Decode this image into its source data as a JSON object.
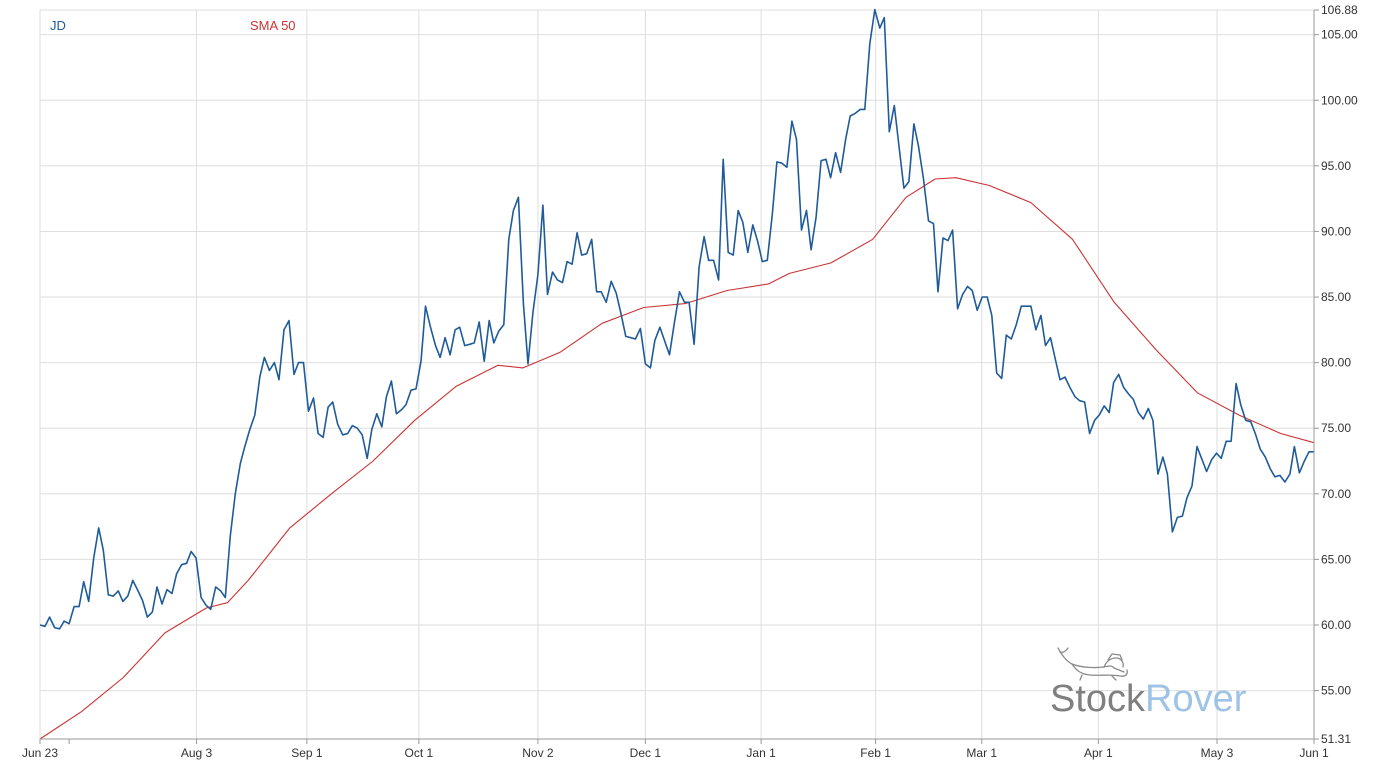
{
  "chart_data": {
    "type": "line",
    "title": "",
    "xlabel": "",
    "ylabel": "",
    "x_ticks": [
      "Jun 23",
      "Aug 3",
      "Sep 1",
      "Oct 1",
      "Nov 2",
      "Dec 1",
      "Jan 1",
      "Feb 1",
      "Mar 1",
      "Apr 1",
      "May 3",
      "Jun 1"
    ],
    "y_ticks": [
      "51.31",
      "55.00",
      "60.00",
      "65.00",
      "70.00",
      "75.00",
      "80.00",
      "85.00",
      "90.00",
      "95.00",
      "100.00",
      "105.00",
      "106.88"
    ],
    "ylim": [
      51.31,
      106.88
    ],
    "grid": true,
    "legend_position": "top-left",
    "series": [
      {
        "name": "JD",
        "color": "#1f5b99",
        "points": [
          [
            0,
            60.0
          ],
          [
            1.2,
            59.9
          ],
          [
            2.3,
            60.6
          ],
          [
            3.5,
            59.8
          ],
          [
            4.7,
            59.7
          ],
          [
            5.8,
            60.3
          ],
          [
            7,
            60.1
          ],
          [
            8.2,
            61.4
          ],
          [
            9.4,
            61.4
          ],
          [
            10.5,
            63.3
          ],
          [
            11.7,
            61.8
          ],
          [
            12.9,
            65.1
          ],
          [
            14.1,
            67.4
          ],
          [
            15.2,
            65.7
          ],
          [
            16.4,
            62.3
          ],
          [
            17.6,
            62.2
          ],
          [
            18.8,
            62.6
          ],
          [
            19.9,
            61.8
          ],
          [
            21.1,
            62.2
          ],
          [
            22.3,
            63.4
          ],
          [
            23.4,
            62.7
          ],
          [
            24.6,
            61.9
          ],
          [
            25.8,
            60.6
          ],
          [
            27,
            61.0
          ],
          [
            28.1,
            62.9
          ],
          [
            29.3,
            61.6
          ],
          [
            30.5,
            62.7
          ],
          [
            31.7,
            62.4
          ],
          [
            32.8,
            63.9
          ],
          [
            34,
            64.6
          ],
          [
            35.2,
            64.7
          ],
          [
            36.3,
            65.6
          ],
          [
            37.5,
            65.1
          ],
          [
            38.7,
            62.1
          ],
          [
            39.9,
            61.5
          ],
          [
            41,
            61.2
          ],
          [
            42.2,
            62.9
          ],
          [
            43.4,
            62.6
          ],
          [
            44.5,
            62.1
          ],
          [
            45.7,
            66.8
          ],
          [
            46.9,
            70.0
          ],
          [
            48.1,
            72.3
          ],
          [
            49.2,
            73.6
          ],
          [
            50.4,
            74.9
          ],
          [
            51.6,
            76.0
          ],
          [
            52.8,
            78.9
          ],
          [
            53.9,
            80.4
          ],
          [
            55.1,
            79.4
          ],
          [
            56.3,
            80.0
          ],
          [
            57.4,
            78.7
          ],
          [
            58.6,
            82.5
          ],
          [
            59.8,
            83.2
          ],
          [
            61,
            79.1
          ],
          [
            62.1,
            80.0
          ],
          [
            63.3,
            80.0
          ],
          [
            64.5,
            76.3
          ],
          [
            65.7,
            77.3
          ],
          [
            66.8,
            74.6
          ],
          [
            68,
            74.3
          ],
          [
            69.2,
            76.6
          ],
          [
            70.3,
            77.0
          ],
          [
            71.5,
            75.3
          ],
          [
            72.7,
            74.5
          ],
          [
            73.9,
            74.6
          ],
          [
            75,
            75.2
          ],
          [
            76.2,
            75.0
          ],
          [
            77.4,
            74.5
          ],
          [
            78.6,
            72.7
          ],
          [
            79.7,
            74.9
          ],
          [
            80.9,
            76.1
          ],
          [
            82.1,
            75.1
          ],
          [
            83.2,
            77.4
          ],
          [
            84.4,
            78.6
          ],
          [
            85.6,
            76.1
          ],
          [
            86.8,
            76.4
          ],
          [
            87.9,
            76.8
          ],
          [
            89.1,
            77.9
          ],
          [
            90.3,
            78.0
          ],
          [
            91.5,
            80.1
          ],
          [
            92.6,
            84.3
          ],
          [
            93.8,
            82.7
          ],
          [
            95,
            81.3
          ],
          [
            96.1,
            80.4
          ],
          [
            97.3,
            81.9
          ],
          [
            98.5,
            80.6
          ],
          [
            99.7,
            82.5
          ],
          [
            100.8,
            82.7
          ],
          [
            102,
            81.3
          ],
          [
            103.2,
            81.4
          ],
          [
            104.3,
            81.5
          ],
          [
            105.5,
            83.1
          ],
          [
            106.7,
            80.1
          ],
          [
            107.9,
            83.2
          ],
          [
            109,
            81.5
          ],
          [
            110.2,
            82.4
          ],
          [
            111.4,
            82.9
          ],
          [
            112.6,
            89.4
          ],
          [
            113.7,
            91.6
          ],
          [
            114.9,
            92.6
          ],
          [
            116.1,
            84.5
          ],
          [
            117.2,
            79.9
          ],
          [
            118.4,
            83.8
          ],
          [
            119.6,
            86.7
          ],
          [
            120.8,
            92.0
          ],
          [
            121.9,
            85.2
          ],
          [
            123.1,
            86.9
          ],
          [
            124.3,
            86.3
          ],
          [
            125.5,
            86.1
          ],
          [
            126.6,
            87.7
          ],
          [
            127.8,
            87.5
          ],
          [
            129,
            89.9
          ],
          [
            130.1,
            88.2
          ],
          [
            131.3,
            88.3
          ],
          [
            132.5,
            89.4
          ],
          [
            133.7,
            85.4
          ],
          [
            134.8,
            85.4
          ],
          [
            136,
            84.6
          ],
          [
            137.2,
            86.2
          ],
          [
            138.4,
            85.3
          ],
          [
            139.5,
            83.8
          ],
          [
            140.7,
            82.0
          ],
          [
            141.9,
            81.9
          ],
          [
            143,
            81.8
          ],
          [
            144.2,
            82.6
          ],
          [
            145.4,
            79.9
          ],
          [
            146.6,
            79.6
          ],
          [
            147.7,
            81.7
          ],
          [
            148.9,
            82.7
          ],
          [
            150.1,
            81.6
          ],
          [
            151.2,
            80.6
          ],
          [
            152.4,
            83.1
          ],
          [
            153.6,
            85.4
          ],
          [
            154.8,
            84.6
          ],
          [
            155.9,
            84.6
          ],
          [
            157.1,
            81.4
          ],
          [
            158.3,
            87.3
          ],
          [
            159.5,
            89.6
          ],
          [
            160.6,
            87.8
          ],
          [
            161.8,
            87.8
          ],
          [
            163,
            86.3
          ],
          [
            164.1,
            95.5
          ],
          [
            165.3,
            88.4
          ],
          [
            166.5,
            88.2
          ],
          [
            167.7,
            91.6
          ],
          [
            168.8,
            90.7
          ],
          [
            170,
            88.4
          ],
          [
            171.2,
            90.5
          ],
          [
            172.4,
            89.2
          ],
          [
            173.5,
            87.7
          ],
          [
            174.7,
            87.8
          ],
          [
            175.9,
            91.3
          ],
          [
            177,
            95.3
          ],
          [
            178.2,
            95.2
          ],
          [
            179.4,
            94.9
          ],
          [
            180.6,
            98.4
          ],
          [
            181.7,
            97.0
          ],
          [
            182.9,
            90.1
          ],
          [
            184.1,
            91.6
          ],
          [
            185.2,
            88.6
          ],
          [
            186.4,
            91.1
          ],
          [
            187.6,
            95.4
          ],
          [
            188.8,
            95.5
          ],
          [
            189.9,
            94.1
          ],
          [
            191.1,
            96.0
          ],
          [
            192.3,
            94.5
          ],
          [
            193.5,
            97.0
          ],
          [
            194.6,
            98.8
          ],
          [
            195.8,
            99.0
          ],
          [
            197,
            99.3
          ],
          [
            198.1,
            99.3
          ],
          [
            199.3,
            104.3
          ],
          [
            200.5,
            106.9
          ],
          [
            201.7,
            105.5
          ],
          [
            202.8,
            106.3
          ],
          [
            204,
            97.6
          ],
          [
            205.2,
            99.6
          ],
          [
            206.4,
            96.3
          ],
          [
            207.5,
            93.3
          ],
          [
            208.7,
            93.8
          ],
          [
            209.9,
            98.2
          ],
          [
            211,
            96.5
          ],
          [
            212.2,
            94.0
          ],
          [
            213.4,
            90.8
          ],
          [
            214.6,
            90.6
          ],
          [
            215.7,
            85.4
          ],
          [
            216.9,
            89.5
          ],
          [
            218.1,
            89.3
          ],
          [
            219.2,
            90.1
          ],
          [
            220.4,
            84.1
          ],
          [
            221.6,
            85.2
          ],
          [
            222.8,
            85.8
          ],
          [
            223.9,
            85.5
          ],
          [
            225.1,
            84.0
          ],
          [
            226.3,
            85.0
          ],
          [
            227.5,
            85.0
          ],
          [
            228.6,
            83.6
          ],
          [
            229.8,
            79.2
          ],
          [
            231,
            78.8
          ],
          [
            232.1,
            82.1
          ],
          [
            233.3,
            81.8
          ],
          [
            234.5,
            82.9
          ],
          [
            235.7,
            84.3
          ],
          [
            236.8,
            84.3
          ],
          [
            238,
            84.3
          ],
          [
            239.2,
            82.5
          ],
          [
            240.4,
            83.6
          ],
          [
            241.5,
            81.3
          ],
          [
            242.7,
            81.9
          ],
          [
            243.9,
            80.2
          ],
          [
            245,
            78.7
          ],
          [
            246.2,
            78.9
          ],
          [
            247.4,
            78.1
          ],
          [
            248.6,
            77.4
          ],
          [
            249.7,
            77.1
          ],
          [
            250.9,
            77.0
          ],
          [
            252.1,
            74.6
          ],
          [
            253.3,
            75.6
          ],
          [
            254.4,
            76.0
          ],
          [
            255.6,
            76.7
          ],
          [
            256.8,
            76.2
          ],
          [
            257.9,
            78.5
          ],
          [
            259.1,
            79.1
          ],
          [
            260.3,
            78.1
          ],
          [
            261.5,
            77.6
          ],
          [
            262.6,
            77.2
          ],
          [
            263.8,
            76.2
          ],
          [
            265,
            75.7
          ],
          [
            266.2,
            76.5
          ],
          [
            267.3,
            75.6
          ],
          [
            268.5,
            71.5
          ],
          [
            269.7,
            72.8
          ],
          [
            270.8,
            71.5
          ],
          [
            272,
            67.1
          ],
          [
            273.2,
            68.2
          ],
          [
            274.4,
            68.3
          ],
          [
            275.5,
            69.7
          ],
          [
            276.7,
            70.6
          ],
          [
            277.9,
            73.6
          ],
          [
            279,
            72.7
          ],
          [
            280.2,
            71.7
          ],
          [
            281.4,
            72.6
          ],
          [
            282.6,
            73.1
          ],
          [
            283.7,
            72.7
          ],
          [
            284.9,
            74.0
          ],
          [
            286.1,
            74.0
          ],
          [
            287.3,
            78.4
          ],
          [
            288.4,
            76.8
          ],
          [
            289.6,
            75.6
          ],
          [
            290.8,
            75.5
          ],
          [
            291.9,
            74.6
          ],
          [
            293.1,
            73.4
          ],
          [
            294.3,
            72.8
          ],
          [
            295.5,
            71.9
          ],
          [
            296.6,
            71.3
          ],
          [
            297.8,
            71.4
          ],
          [
            299,
            70.9
          ],
          [
            300.2,
            71.5
          ],
          [
            301.3,
            73.6
          ],
          [
            302.5,
            71.6
          ],
          [
            303.7,
            72.5
          ],
          [
            304.8,
            73.2
          ],
          [
            306,
            73.2
          ]
        ]
      },
      {
        "name": "SMA 50",
        "color": "#cc3333",
        "points": [
          [
            0,
            51.31
          ],
          [
            10,
            53.4
          ],
          [
            20,
            56.0
          ],
          [
            30,
            59.4
          ],
          [
            40,
            61.3
          ],
          [
            45,
            61.7
          ],
          [
            50,
            63.4
          ],
          [
            60,
            67.4
          ],
          [
            70,
            70.0
          ],
          [
            80,
            72.5
          ],
          [
            90,
            75.6
          ],
          [
            100,
            78.2
          ],
          [
            110,
            79.8
          ],
          [
            116,
            79.6
          ],
          [
            125,
            80.8
          ],
          [
            135,
            83.0
          ],
          [
            145,
            84.2
          ],
          [
            155,
            84.5
          ],
          [
            165,
            85.5
          ],
          [
            175,
            86.0
          ],
          [
            180,
            86.8
          ],
          [
            190,
            87.6
          ],
          [
            200,
            89.4
          ],
          [
            208,
            92.6
          ],
          [
            215,
            94.0
          ],
          [
            220,
            94.1
          ],
          [
            228,
            93.5
          ],
          [
            238,
            92.2
          ],
          [
            248,
            89.4
          ],
          [
            258,
            84.6
          ],
          [
            268,
            81.0
          ],
          [
            278,
            77.7
          ],
          [
            288,
            76.0
          ],
          [
            298,
            74.6
          ],
          [
            306,
            73.9
          ]
        ]
      }
    ]
  },
  "watermark": {
    "text_stock": "Stock",
    "text_rover": "Rover",
    "color_stock": "#7f7f7f",
    "color_rover": "#9ec3e6",
    "mascot": "dog-mascot-icon"
  }
}
